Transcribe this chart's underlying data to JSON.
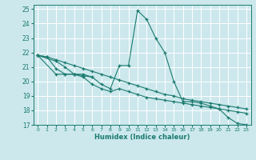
{
  "xlabel": "Humidex (Indice chaleur)",
  "bg_color": "#cce8ed",
  "line_color": "#1a7a6e",
  "grid_color": "#b8d8dc",
  "xlim": [
    -0.5,
    23.5
  ],
  "ylim": [
    17,
    25.3
  ],
  "yticks": [
    17,
    18,
    19,
    20,
    21,
    22,
    23,
    24,
    25
  ],
  "xticks": [
    0,
    1,
    2,
    3,
    4,
    5,
    6,
    7,
    8,
    9,
    10,
    11,
    12,
    13,
    14,
    15,
    16,
    17,
    18,
    19,
    20,
    21,
    22,
    23
  ],
  "series": [
    {
      "x": [
        0,
        1,
        2,
        3,
        4,
        5,
        6,
        7,
        8,
        9,
        10,
        11,
        12,
        13,
        14,
        15,
        16,
        17,
        18,
        19,
        20,
        21,
        22,
        23
      ],
      "y": [
        21.8,
        21.7,
        20.9,
        20.5,
        20.5,
        20.5,
        20.3,
        19.8,
        19.5,
        21.1,
        21.1,
        24.9,
        24.3,
        23.0,
        22.0,
        20.0,
        18.6,
        18.6,
        18.5,
        18.3,
        18.1,
        17.5,
        17.1,
        17.0
      ]
    },
    {
      "x": [
        0,
        2,
        3,
        4,
        5,
        6
      ],
      "y": [
        21.8,
        21.4,
        21.0,
        20.5,
        20.4,
        20.3
      ]
    },
    {
      "x": [
        0,
        2,
        3,
        4,
        5,
        6,
        7,
        8,
        9,
        10,
        11,
        12,
        13,
        14,
        15,
        16,
        17,
        18,
        19,
        20,
        21,
        22,
        23
      ],
      "y": [
        21.8,
        20.5,
        20.5,
        20.5,
        20.3,
        19.8,
        19.5,
        19.3,
        19.5,
        19.3,
        19.1,
        18.9,
        18.8,
        18.7,
        18.6,
        18.5,
        18.4,
        18.3,
        18.2,
        18.1,
        18.0,
        17.9,
        17.8
      ]
    },
    {
      "x": [
        0,
        1,
        2,
        3,
        4,
        5,
        6,
        7,
        8,
        9,
        10,
        11,
        12,
        13,
        14,
        15,
        16,
        17,
        18,
        19,
        20,
        21,
        22,
        23
      ],
      "y": [
        21.8,
        21.7,
        21.5,
        21.3,
        21.1,
        20.9,
        20.7,
        20.5,
        20.3,
        20.1,
        19.9,
        19.7,
        19.5,
        19.3,
        19.1,
        19.0,
        18.8,
        18.7,
        18.6,
        18.5,
        18.4,
        18.3,
        18.2,
        18.1
      ]
    }
  ]
}
